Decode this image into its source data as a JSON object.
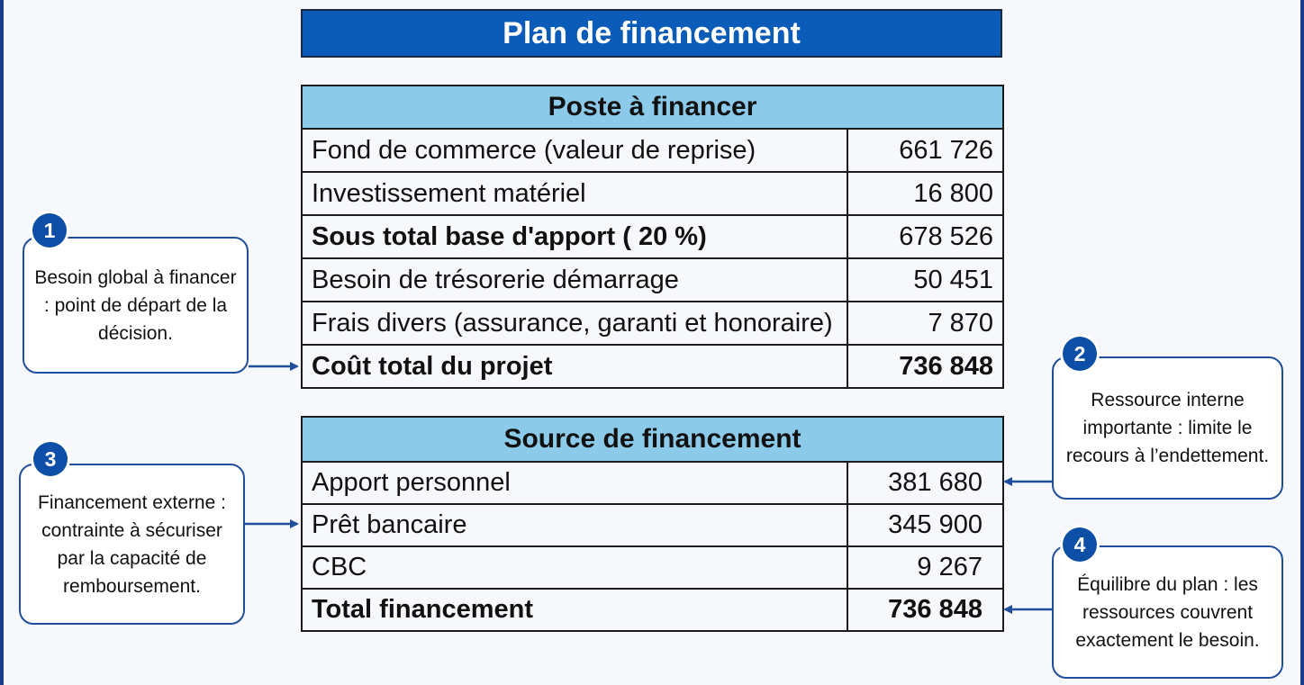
{
  "title": "Plan de financement",
  "poste": {
    "header": "Poste à financer",
    "rows": [
      {
        "label": "Fond de commerce (valeur de reprise)",
        "value": "661 726"
      },
      {
        "label": "Investissement matériel",
        "value": "16 800"
      },
      {
        "label": "Sous total base d'apport ( 20 %)",
        "value": "678 526"
      },
      {
        "label": "Besoin de trésorerie démarrage",
        "value": "50 451"
      },
      {
        "label": "Frais divers (assurance, garanti et honoraire)",
        "value": "7 870"
      },
      {
        "label": "Coût total du projet",
        "value": "736 848"
      }
    ]
  },
  "source": {
    "header": "Source de financement",
    "rows": [
      {
        "label": "Apport personnel",
        "value": "381 680"
      },
      {
        "label": "Prêt bancaire",
        "value": "345 900"
      },
      {
        "label": "CBC",
        "value": "9 267"
      },
      {
        "label": "Total financement",
        "value": "736 848"
      }
    ]
  },
  "callouts": [
    {
      "number": "1",
      "text": "Besoin global à financer : point de départ de la décision."
    },
    {
      "number": "2",
      "text": "Ressource interne importante : limite le recours à l’endettement."
    },
    {
      "number": "3",
      "text": "Financement externe : contrainte à sécuriser par la capacité de remboursement."
    },
    {
      "number": "4",
      "text": "Équilibre du plan : les ressources couvrent exactement le besoin."
    }
  ],
  "colors": {
    "title_bg": "#0b5bb8",
    "header_bg": "#8ccaea",
    "accent": "#1f4e9c"
  }
}
